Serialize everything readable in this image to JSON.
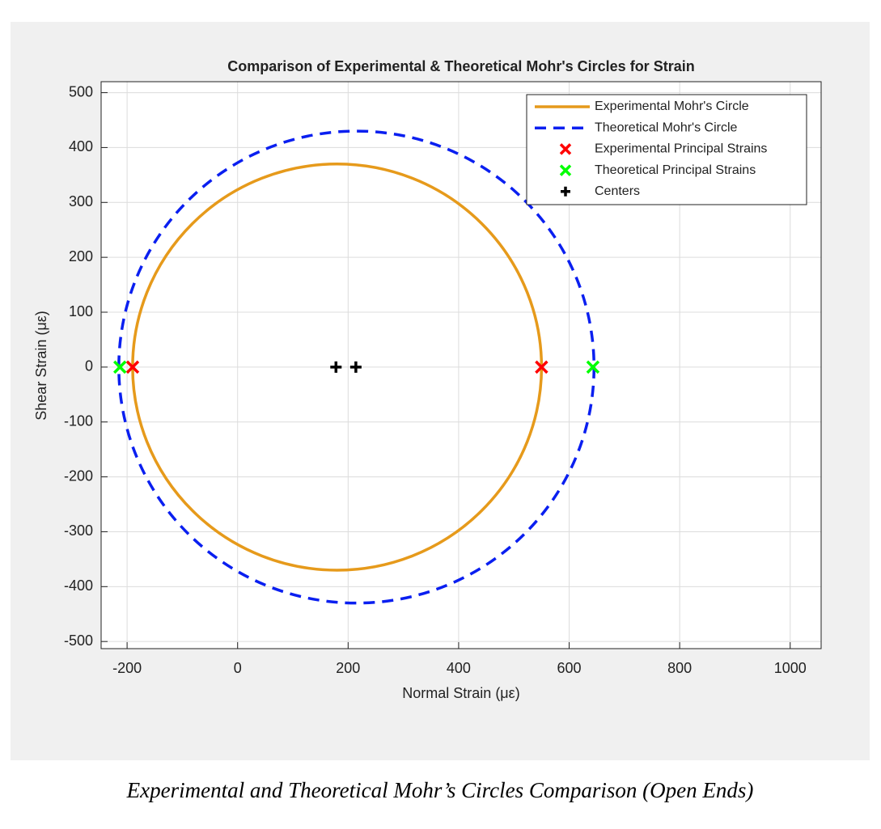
{
  "chart_data": {
    "type": "mohr",
    "title": "Comparison of Experimental & Theoretical Mohr's Circles for Strain",
    "xlabel": "Normal Strain (με)",
    "ylabel": "Shear Strain (με)",
    "xlim": [
      -247,
      1056
    ],
    "ylim": [
      -513,
      520
    ],
    "xticks": [
      -200,
      0,
      200,
      400,
      600,
      800,
      1000
    ],
    "yticks": [
      -500,
      -400,
      -300,
      -200,
      -100,
      0,
      100,
      200,
      300,
      400,
      500
    ],
    "grid": true,
    "legend": "northeast",
    "series": [
      {
        "name": "Experimental Mohr's Circle",
        "kind": "circle",
        "color": "#e69a1b",
        "line_style": "solid",
        "center": 180,
        "radius": 370
      },
      {
        "name": "Theoretical Mohr's Circle",
        "kind": "circle",
        "color": "#0a1ff0",
        "line_style": "dashed",
        "center": 215,
        "radius": 430
      },
      {
        "name": "Experimental Principal Strains",
        "kind": "scatter",
        "marker": "x",
        "color": "#ff0000",
        "x": [
          -190,
          550
        ],
        "values": [
          0,
          0
        ]
      },
      {
        "name": "Theoretical Principal Strains",
        "kind": "scatter",
        "marker": "x",
        "color": "#00ff00",
        "x": [
          -213,
          643
        ],
        "values": [
          0,
          0
        ]
      },
      {
        "name": "Centers",
        "kind": "scatter",
        "marker": "+",
        "color": "#000000",
        "x": [
          178,
          214
        ],
        "values": [
          0,
          0
        ]
      }
    ]
  },
  "caption": "Experimental and Theoretical Mohr’s Circles Comparison (Open Ends)"
}
